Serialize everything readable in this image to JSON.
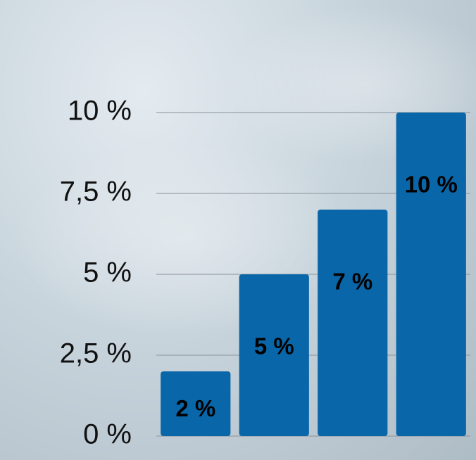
{
  "chart_data": {
    "type": "bar",
    "categories": [
      null,
      null,
      null,
      null
    ],
    "values": [
      2,
      5,
      7,
      10
    ],
    "value_labels": [
      "2 %",
      "5 %",
      "7 %",
      "10 %"
    ],
    "color": "#0966a8",
    "ylim": [
      0,
      10
    ],
    "yticks": [
      {
        "value": 0,
        "label": "0 %"
      },
      {
        "value": 2.5,
        "label": "2,5 %"
      },
      {
        "value": 5,
        "label": "5 %"
      },
      {
        "value": 7.5,
        "label": "7,5 %"
      },
      {
        "value": 10,
        "label": "10 %"
      }
    ],
    "grid": true
  }
}
